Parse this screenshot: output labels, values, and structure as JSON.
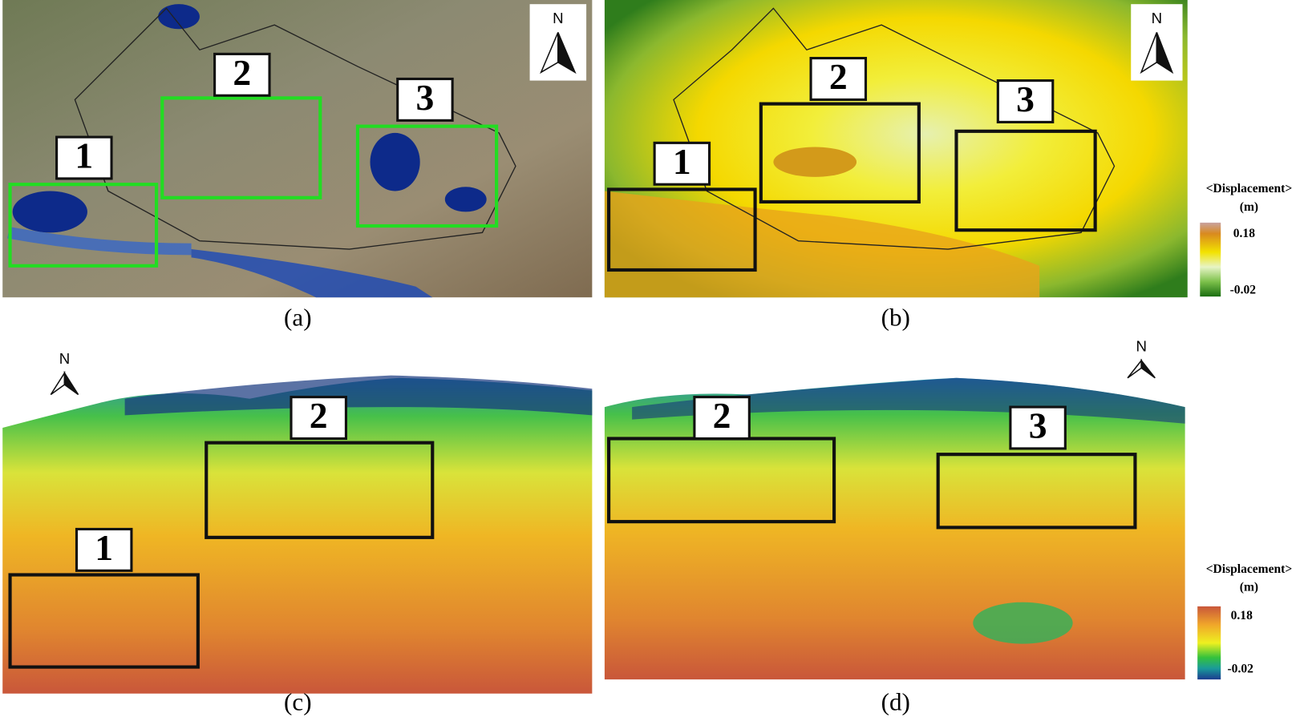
{
  "panels": [
    {
      "caption": "(a)",
      "north": "N",
      "regions": [
        "1",
        "2",
        "3"
      ]
    },
    {
      "caption": "(b)",
      "north": "N",
      "regions": [
        "1",
        "2",
        "3"
      ],
      "colorbar": {
        "title": "<Displacement>",
        "unit": "(m)",
        "max": 0.18,
        "min": -0.02
      }
    },
    {
      "caption": "(c)",
      "north": "N",
      "regions": [
        "1",
        "2"
      ]
    },
    {
      "caption": "(d)",
      "north": "N",
      "regions": [
        "2",
        "3"
      ],
      "colorbar": {
        "title": "<Displacement>",
        "unit": "(m)",
        "max": 0.18,
        "min": -0.02
      }
    }
  ]
}
